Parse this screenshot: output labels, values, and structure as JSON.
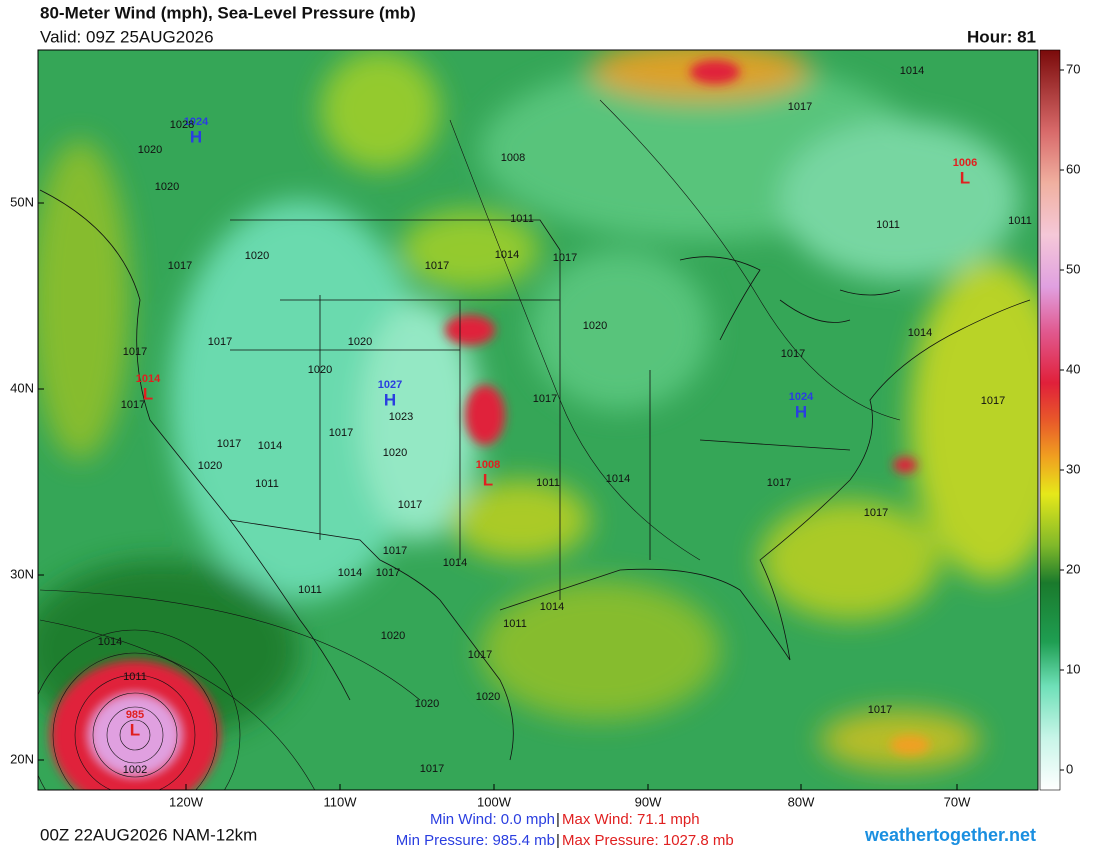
{
  "header": {
    "title": "80-Meter Wind (mph), Sea-Level Pressure (mb)",
    "valid": "Valid: 09Z 25AUG2026",
    "hour": "Hour: 81"
  },
  "map": {
    "lat_labels": [
      "50N",
      "40N",
      "30N",
      "20N"
    ],
    "lon_labels": [
      "120W",
      "110W",
      "100W",
      "90W",
      "80W",
      "70W"
    ],
    "pressure_centers": [
      {
        "symbol": "H",
        "value": "1024"
      },
      {
        "symbol": "H",
        "value": "1027"
      },
      {
        "symbol": "H",
        "value": "1024"
      },
      {
        "symbol": "L",
        "value": "1014"
      },
      {
        "symbol": "L",
        "value": "1008"
      },
      {
        "symbol": "L",
        "value": "1006"
      },
      {
        "symbol": "L",
        "value": "985"
      }
    ],
    "isobar_labels": [
      "1028",
      "1020",
      "1020",
      "1017",
      "1020",
      "1017",
      "1017",
      "1020",
      "1020",
      "1023",
      "1017",
      "1017",
      "1014",
      "1020",
      "1011",
      "1020",
      "1017",
      "1014",
      "1017",
      "1017",
      "1014",
      "1011",
      "1020",
      "1017",
      "1020",
      "1020",
      "1017",
      "1014",
      "1011",
      "1002",
      "1017",
      "1014",
      "1017",
      "1011",
      "1008",
      "1020",
      "1017",
      "1011",
      "1014",
      "1017",
      "1017",
      "1017",
      "1014",
      "1017",
      "1011",
      "1011",
      "1017",
      "1014",
      "1014",
      "1017",
      "1011",
      "1017"
    ]
  },
  "colorbar": {
    "ticks": [
      0,
      10,
      20,
      30,
      40,
      50,
      60,
      70
    ]
  },
  "footer": {
    "run": "00Z 22AUG2026 NAM-12km",
    "min_wind": "Min Wind:  0.0 mph",
    "max_wind": "Max Wind:  71.1 mph",
    "min_pressure": "Min Pressure: 985.4 mb",
    "max_pressure": "Max Pressure: 1027.8 mb",
    "separator": "|",
    "site": "weathertogether.net"
  }
}
